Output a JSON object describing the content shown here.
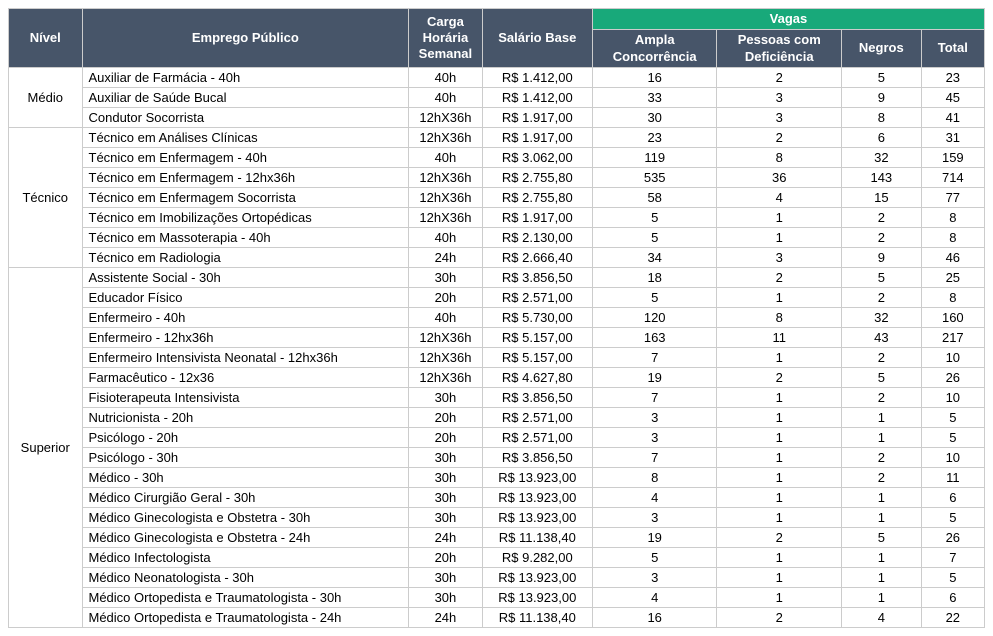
{
  "headers": {
    "nivel": "Nível",
    "emprego": "Emprego Público",
    "carga": "Carga Horária Semanal",
    "salario": "Salário Base",
    "vagas_top": "Vagas",
    "ampla": "Ampla Concorrência",
    "pcd": "Pessoas com Deficiência",
    "negros": "Negros",
    "total": "Total"
  },
  "colors": {
    "header_bg": "#475569",
    "header_fg": "#ffffff",
    "vagas_bg": "#18a97a",
    "border": "#cccccc",
    "body_bg": "#ffffff",
    "text": "#000000"
  },
  "groups": [
    {
      "nivel": "Médio",
      "rows": [
        {
          "job": "Auxiliar de Farmácia - 40h",
          "carga": "40h",
          "salario": "R$ 1.412,00",
          "ampla": "16",
          "pcd": "2",
          "negros": "5",
          "total": "23"
        },
        {
          "job": "Auxiliar de Saúde Bucal",
          "carga": "40h",
          "salario": "R$ 1.412,00",
          "ampla": "33",
          "pcd": "3",
          "negros": "9",
          "total": "45"
        },
        {
          "job": "Condutor Socorrista",
          "carga": "12hX36h",
          "salario": "R$ 1.917,00",
          "ampla": "30",
          "pcd": "3",
          "negros": "8",
          "total": "41"
        }
      ]
    },
    {
      "nivel": "Técnico",
      "rows": [
        {
          "job": "Técnico em Análises Clínicas",
          "carga": "12hX36h",
          "salario": "R$ 1.917,00",
          "ampla": "23",
          "pcd": "2",
          "negros": "6",
          "total": "31"
        },
        {
          "job": "Técnico em Enfermagem - 40h",
          "carga": "40h",
          "salario": "R$ 3.062,00",
          "ampla": "119",
          "pcd": "8",
          "negros": "32",
          "total": "159"
        },
        {
          "job": "Técnico em Enfermagem - 12hx36h",
          "carga": "12hX36h",
          "salario": "R$ 2.755,80",
          "ampla": "535",
          "pcd": "36",
          "negros": "143",
          "total": "714"
        },
        {
          "job": "Técnico em Enfermagem Socorrista",
          "carga": "12hX36h",
          "salario": "R$ 2.755,80",
          "ampla": "58",
          "pcd": "4",
          "negros": "15",
          "total": "77"
        },
        {
          "job": "Técnico em Imobilizações Ortopédicas",
          "carga": "12hX36h",
          "salario": "R$ 1.917,00",
          "ampla": "5",
          "pcd": "1",
          "negros": "2",
          "total": "8"
        },
        {
          "job": "Técnico em Massoterapia - 40h",
          "carga": "40h",
          "salario": "R$ 2.130,00",
          "ampla": "5",
          "pcd": "1",
          "negros": "2",
          "total": "8"
        },
        {
          "job": "Técnico em Radiologia",
          "carga": "24h",
          "salario": "R$ 2.666,40",
          "ampla": "34",
          "pcd": "3",
          "negros": "9",
          "total": "46"
        }
      ]
    },
    {
      "nivel": "Superior",
      "rows": [
        {
          "job": "Assistente Social - 30h",
          "carga": "30h",
          "salario": "R$ 3.856,50",
          "ampla": "18",
          "pcd": "2",
          "negros": "5",
          "total": "25"
        },
        {
          "job": "Educador Físico",
          "carga": "20h",
          "salario": "R$ 2.571,00",
          "ampla": "5",
          "pcd": "1",
          "negros": "2",
          "total": "8"
        },
        {
          "job": "Enfermeiro - 40h",
          "carga": "40h",
          "salario": "R$ 5.730,00",
          "ampla": "120",
          "pcd": "8",
          "negros": "32",
          "total": "160"
        },
        {
          "job": "Enfermeiro - 12hx36h",
          "carga": "12hX36h",
          "salario": "R$ 5.157,00",
          "ampla": "163",
          "pcd": "11",
          "negros": "43",
          "total": "217"
        },
        {
          "job": "Enfermeiro Intensivista Neonatal - 12hx36h",
          "carga": "12hX36h",
          "salario": "R$ 5.157,00",
          "ampla": "7",
          "pcd": "1",
          "negros": "2",
          "total": "10"
        },
        {
          "job": "Farmacêutico - 12x36",
          "carga": "12hX36h",
          "salario": "R$ 4.627,80",
          "ampla": "19",
          "pcd": "2",
          "negros": "5",
          "total": "26"
        },
        {
          "job": "Fisioterapeuta Intensivista",
          "carga": "30h",
          "salario": "R$ 3.856,50",
          "ampla": "7",
          "pcd": "1",
          "negros": "2",
          "total": "10"
        },
        {
          "job": "Nutricionista - 20h",
          "carga": "20h",
          "salario": "R$ 2.571,00",
          "ampla": "3",
          "pcd": "1",
          "negros": "1",
          "total": "5"
        },
        {
          "job": "Psicólogo - 20h",
          "carga": "20h",
          "salario": "R$ 2.571,00",
          "ampla": "3",
          "pcd": "1",
          "negros": "1",
          "total": "5"
        },
        {
          "job": "Psicólogo - 30h",
          "carga": "30h",
          "salario": "R$ 3.856,50",
          "ampla": "7",
          "pcd": "1",
          "negros": "2",
          "total": "10"
        },
        {
          "job": "Médico - 30h",
          "carga": "30h",
          "salario": "R$ 13.923,00",
          "ampla": "8",
          "pcd": "1",
          "negros": "2",
          "total": "11"
        },
        {
          "job": "Médico Cirurgião Geral - 30h",
          "carga": "30h",
          "salario": "R$ 13.923,00",
          "ampla": "4",
          "pcd": "1",
          "negros": "1",
          "total": "6"
        },
        {
          "job": "Médico Ginecologista e Obstetra - 30h",
          "carga": "30h",
          "salario": "R$ 13.923,00",
          "ampla": "3",
          "pcd": "1",
          "negros": "1",
          "total": "5"
        },
        {
          "job": "Médico Ginecologista e Obstetra - 24h",
          "carga": "24h",
          "salario": "R$ 11.138,40",
          "ampla": "19",
          "pcd": "2",
          "negros": "5",
          "total": "26"
        },
        {
          "job": "Médico Infectologista",
          "carga": "20h",
          "salario": "R$ 9.282,00",
          "ampla": "5",
          "pcd": "1",
          "negros": "1",
          "total": "7"
        },
        {
          "job": "Médico Neonatologista - 30h",
          "carga": "30h",
          "salario": "R$ 13.923,00",
          "ampla": "3",
          "pcd": "1",
          "negros": "1",
          "total": "5"
        },
        {
          "job": "Médico Ortopedista e Traumatologista - 30h",
          "carga": "30h",
          "salario": "R$ 13.923,00",
          "ampla": "4",
          "pcd": "1",
          "negros": "1",
          "total": "6"
        },
        {
          "job": "Médico Ortopedista e Traumatologista - 24h",
          "carga": "24h",
          "salario": "R$ 11.138,40",
          "ampla": "16",
          "pcd": "2",
          "negros": "4",
          "total": "22"
        }
      ]
    }
  ]
}
